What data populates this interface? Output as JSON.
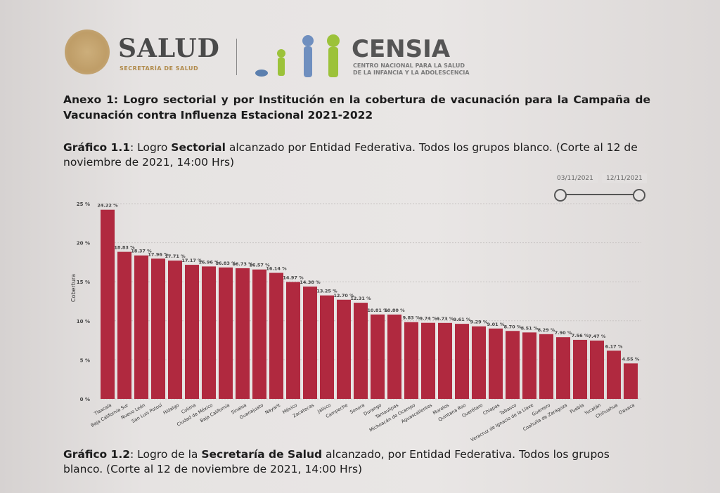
{
  "header": {
    "logo_salud": "SALUD",
    "logo_salud_sub": "SECRETARÍA DE SALUD",
    "logo_censia": "CENSIA",
    "logo_censia_sub1": "CENTRO NACIONAL PARA LA SALUD",
    "logo_censia_sub2": "DE LA INFANCIA Y LA ADOLESCENCIA"
  },
  "document": {
    "title": "Anexo 1: Logro sectorial y por Institución en la cobertura de vacunación para la Campaña de Vacunación contra Influenza Estacional 2021-2022",
    "caption1_label": "Gráfico 1.1",
    "caption1_a": ": Logro ",
    "caption1_bold": "Sectorial",
    "caption1_b": " alcanzado por Entidad Federativa. Todos los grupos blanco. (Corte al 12 de noviembre de 2021, 14:00 Hrs)",
    "caption2_label": "Gráfico 1.2",
    "caption2_a": ": Logro de la ",
    "caption2_bold": "Secretaría de Salud",
    "caption2_b": " alcanzado, por Entidad Federativa. Todos los grupos blanco. (Corte al 12 de noviembre de 2021, 14:00 Hrs)"
  },
  "date_slider": {
    "start": "03/11/2021",
    "end": "12/11/2021"
  },
  "chart_data": {
    "type": "bar",
    "title": "",
    "xlabel": "",
    "ylabel": "Cobertura",
    "ylim": [
      0,
      25
    ],
    "yticks": [
      "0 %",
      "5 %",
      "10 %",
      "15 %",
      "20 %",
      "25 %"
    ],
    "grid": true,
    "bar_color": "#b0293f",
    "categories": [
      "Tlaxcala",
      "Baja California Sur",
      "Nuevo León",
      "San Luis Potosí",
      "Hidalgo",
      "Colima",
      "Ciudad de México",
      "Baja California",
      "Sinaloa",
      "Guanajuato",
      "Nayarit",
      "México",
      "Zacatecas",
      "Jalisco",
      "Campeche",
      "Sonora",
      "Durango",
      "Tamaulipas",
      "Michoacán de Ocampo",
      "Aguascalientes",
      "Morelos",
      "Quintana Roo",
      "Querétaro",
      "Chiapas",
      "Tabasco",
      "Veracruz de Ignacio de la Llave",
      "Guerrero",
      "Coahuila de Zaragoza",
      "Puebla",
      "Yucatán",
      "Chihuahua",
      "Oaxaca"
    ],
    "values": [
      24.22,
      18.83,
      18.37,
      17.96,
      17.71,
      17.17,
      16.96,
      16.83,
      16.73,
      16.57,
      16.14,
      14.97,
      14.38,
      13.25,
      12.7,
      12.31,
      10.81,
      10.8,
      9.83,
      9.74,
      9.73,
      9.61,
      9.29,
      9.01,
      8.7,
      8.51,
      8.29,
      7.9,
      7.56,
      7.47,
      6.17,
      4.55
    ],
    "labels": [
      "24.22 %",
      "18.83 %",
      "18.37 %",
      "17.96 %",
      "17.71 %",
      "17.17 %",
      "16.96 %",
      "16.83 %",
      "16.73 %",
      "16.57 %",
      "16.14 %",
      "14.97 %",
      "14.38 %",
      "13.25 %",
      "12.70 %",
      "12.31 %",
      "10.81 %",
      "10.80 %",
      "9.83 %",
      "9.74 %",
      "9.73 %",
      "9.61 %",
      "9.29 %",
      "9.01 %",
      "8.70 %",
      "8.51 %",
      "8.29 %",
      "7.90 %",
      "7.56 %",
      "7.47 %",
      "6.17 %",
      "4.55 %"
    ]
  }
}
